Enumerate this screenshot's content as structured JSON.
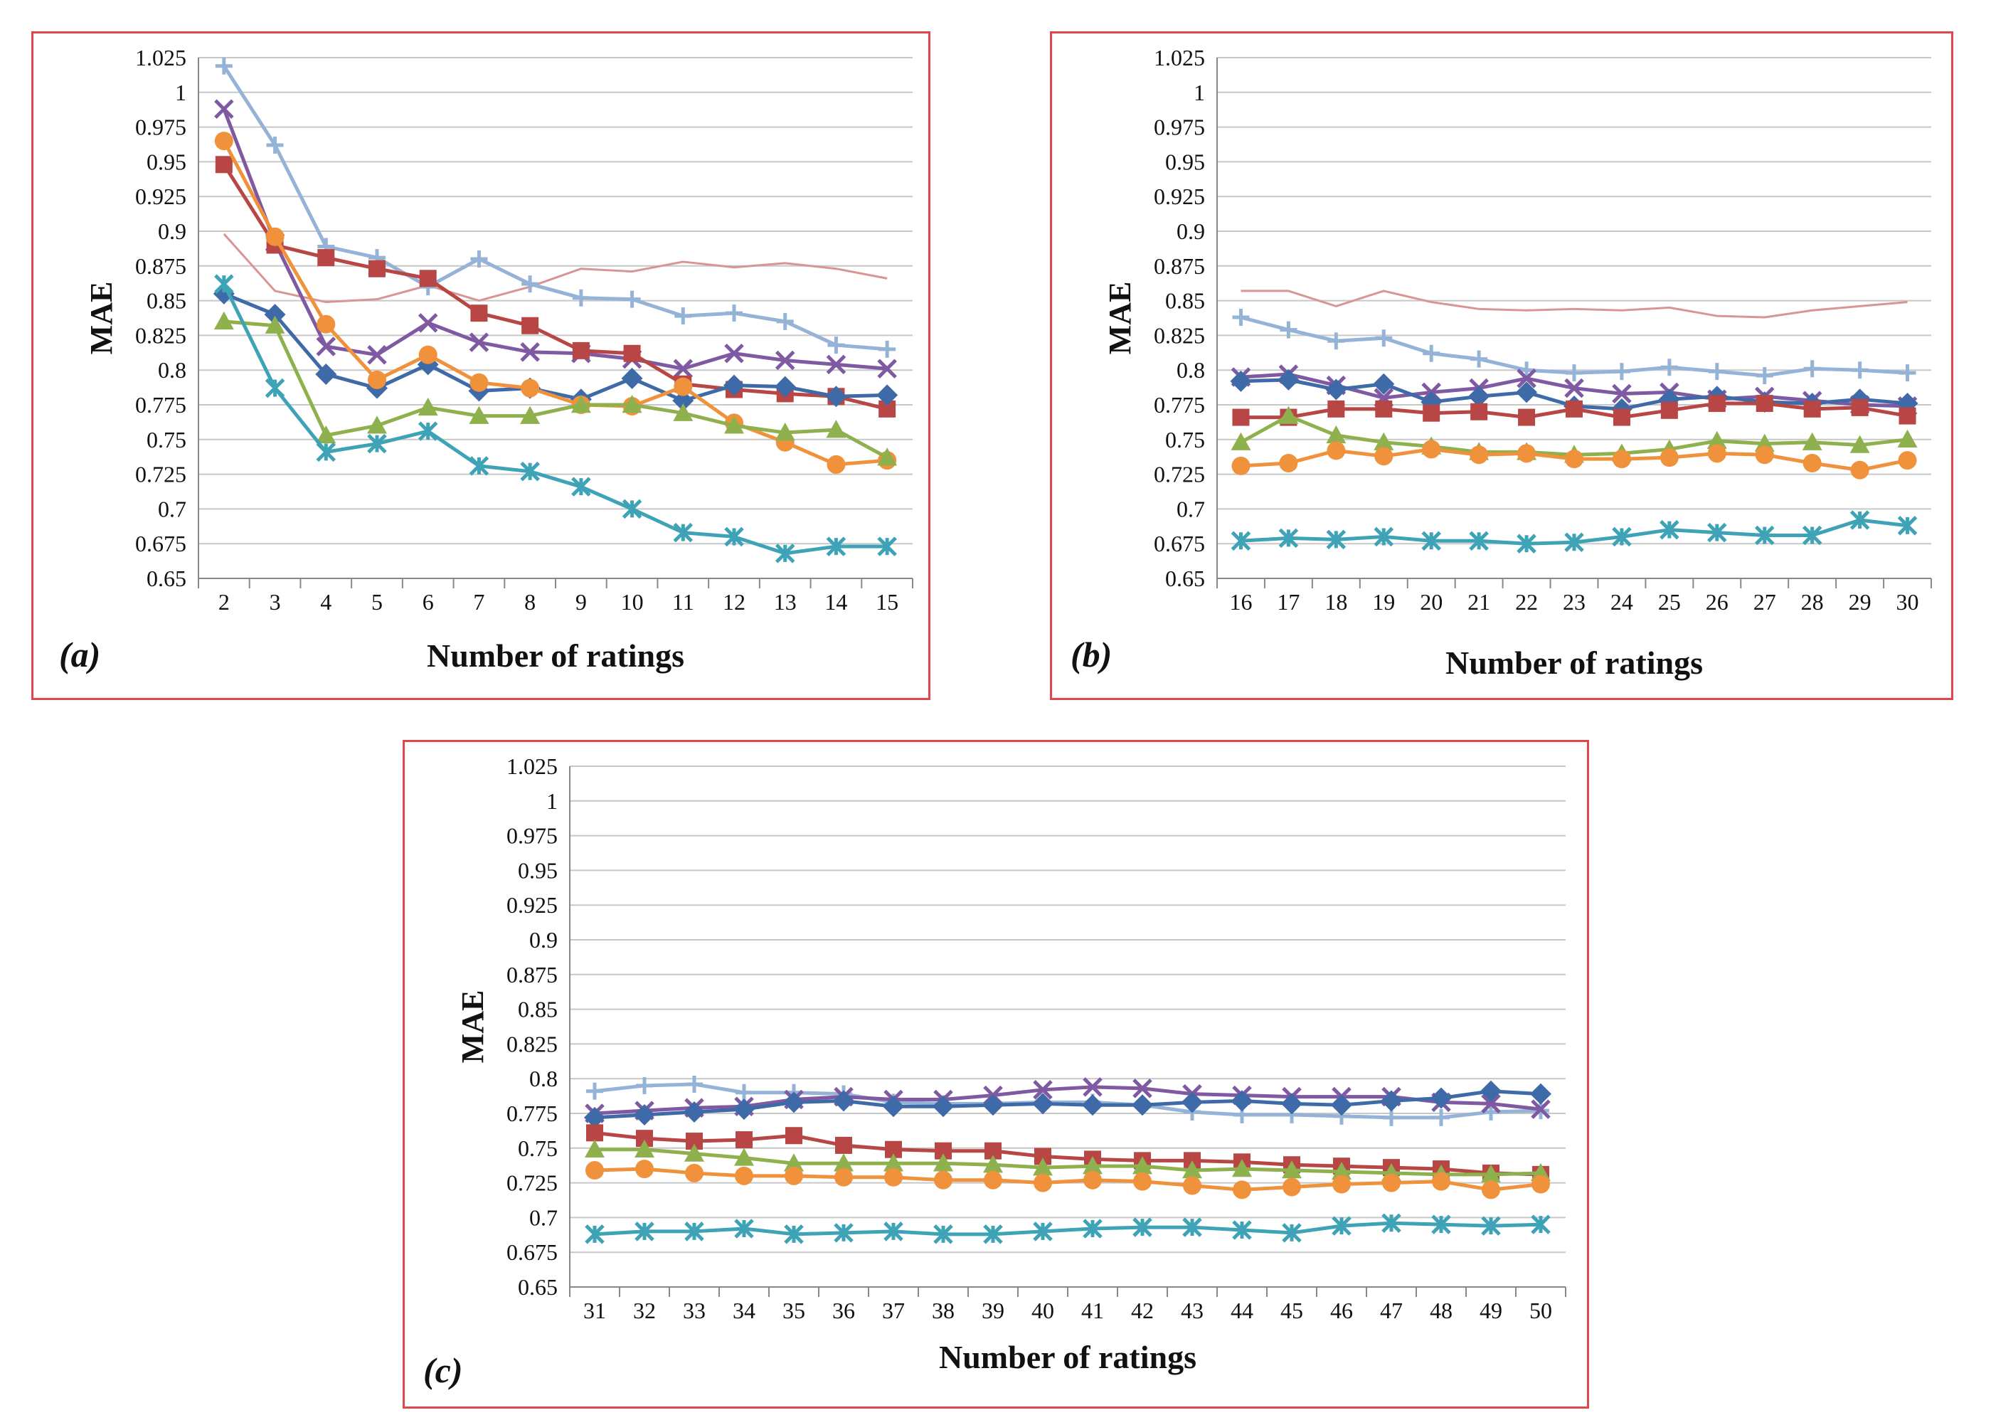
{
  "colors": {
    "frame": "#e0474c",
    "grid": "#c8c8c8",
    "axis": "#888888"
  },
  "chart_data": [
    {
      "panel_label": "(a)",
      "type": "line",
      "title": "",
      "xlabel": "Number of ratings",
      "ylabel": "MAE",
      "x": [
        2,
        3,
        4,
        5,
        6,
        7,
        8,
        9,
        10,
        11,
        12,
        13,
        14,
        15
      ],
      "ylim": [
        0.65,
        1.025
      ],
      "yticks": [
        "0.65",
        "0.675",
        "0.7",
        "0.725",
        "0.75",
        "0.775",
        "0.8",
        "0.825",
        "0.85",
        "0.875",
        "0.9",
        "0.925",
        "0.95",
        "0.975",
        "1",
        "1.025"
      ],
      "series": [
        {
          "name": "pink-thin-line",
          "color": "#d99594",
          "marker": "none",
          "values": [
            0.898,
            0.857,
            0.849,
            0.851,
            0.861,
            0.85,
            0.86,
            0.873,
            0.871,
            0.878,
            0.874,
            0.877,
            0.873,
            0.866
          ]
        },
        {
          "name": "light-blue-plus",
          "color": "#95b3d7",
          "marker": "plus",
          "values": [
            1.019,
            0.962,
            0.889,
            0.881,
            0.86,
            0.88,
            0.862,
            0.852,
            0.851,
            0.839,
            0.841,
            0.835,
            0.818,
            0.815
          ]
        },
        {
          "name": "purple-x",
          "color": "#7f5aa2",
          "marker": "x",
          "values": [
            0.988,
            0.892,
            0.817,
            0.811,
            0.834,
            0.82,
            0.813,
            0.812,
            0.808,
            0.801,
            0.812,
            0.807,
            0.804,
            0.801
          ]
        },
        {
          "name": "dark-red-square",
          "color": "#b84644",
          "marker": "square",
          "values": [
            0.948,
            0.89,
            0.881,
            0.873,
            0.866,
            0.841,
            0.832,
            0.814,
            0.812,
            0.79,
            0.786,
            0.783,
            0.781,
            0.772
          ]
        },
        {
          "name": "blue-diamond",
          "color": "#3f6aa8",
          "marker": "diamond",
          "values": [
            0.855,
            0.84,
            0.797,
            0.787,
            0.804,
            0.785,
            0.787,
            0.779,
            0.794,
            0.778,
            0.789,
            0.788,
            0.781,
            0.782
          ]
        },
        {
          "name": "orange-circle",
          "color": "#f0913c",
          "marker": "circle",
          "values": [
            0.965,
            0.896,
            0.833,
            0.793,
            0.811,
            0.791,
            0.787,
            0.775,
            0.774,
            0.788,
            0.762,
            0.748,
            0.732,
            0.735
          ]
        },
        {
          "name": "green-triangle",
          "color": "#8eb04d",
          "marker": "triangle",
          "values": [
            0.835,
            0.832,
            0.753,
            0.76,
            0.773,
            0.767,
            0.767,
            0.775,
            0.775,
            0.769,
            0.76,
            0.755,
            0.757,
            0.737
          ]
        },
        {
          "name": "teal-star",
          "color": "#3ea3b6",
          "marker": "star",
          "values": [
            0.862,
            0.787,
            0.741,
            0.747,
            0.756,
            0.731,
            0.727,
            0.716,
            0.7,
            0.683,
            0.68,
            0.668,
            0.673,
            0.673
          ]
        }
      ]
    },
    {
      "panel_label": "(b)",
      "type": "line",
      "title": "",
      "xlabel": "Number of ratings",
      "ylabel": "MAE",
      "x": [
        16,
        17,
        18,
        19,
        20,
        21,
        22,
        23,
        24,
        25,
        26,
        27,
        28,
        29,
        30
      ],
      "ylim": [
        0.65,
        1.025
      ],
      "yticks": [
        "0.65",
        "0.675",
        "0.7",
        "0.725",
        "0.75",
        "0.775",
        "0.8",
        "0.825",
        "0.85",
        "0.875",
        "0.9",
        "0.925",
        "0.95",
        "0.975",
        "1",
        "1.025"
      ],
      "series": [
        {
          "name": "pink-thin-line",
          "color": "#d99594",
          "marker": "none",
          "values": [
            0.857,
            0.857,
            0.846,
            0.857,
            0.849,
            0.844,
            0.843,
            0.844,
            0.843,
            0.845,
            0.839,
            0.838,
            0.843,
            0.846,
            0.849
          ]
        },
        {
          "name": "light-blue-plus",
          "color": "#95b3d7",
          "marker": "plus",
          "values": [
            0.838,
            0.829,
            0.821,
            0.823,
            0.812,
            0.808,
            0.8,
            0.798,
            0.799,
            0.802,
            0.799,
            0.796,
            0.801,
            0.8,
            0.798
          ]
        },
        {
          "name": "purple-x",
          "color": "#7f5aa2",
          "marker": "x",
          "values": [
            0.795,
            0.797,
            0.789,
            0.78,
            0.784,
            0.787,
            0.794,
            0.787,
            0.783,
            0.784,
            0.779,
            0.781,
            0.778,
            0.775,
            0.774
          ]
        },
        {
          "name": "blue-diamond",
          "color": "#3f6aa8",
          "marker": "diamond",
          "values": [
            0.792,
            0.793,
            0.786,
            0.79,
            0.777,
            0.781,
            0.784,
            0.774,
            0.772,
            0.779,
            0.781,
            0.777,
            0.776,
            0.779,
            0.776
          ]
        },
        {
          "name": "dark-red-square",
          "color": "#b84644",
          "marker": "square",
          "values": [
            0.766,
            0.766,
            0.772,
            0.772,
            0.769,
            0.77,
            0.766,
            0.772,
            0.766,
            0.771,
            0.776,
            0.776,
            0.772,
            0.773,
            0.767
          ]
        },
        {
          "name": "green-triangle",
          "color": "#8eb04d",
          "marker": "triangle",
          "values": [
            0.748,
            0.767,
            0.753,
            0.748,
            0.745,
            0.741,
            0.741,
            0.739,
            0.74,
            0.743,
            0.749,
            0.747,
            0.748,
            0.746,
            0.75
          ]
        },
        {
          "name": "orange-circle",
          "color": "#f0913c",
          "marker": "circle",
          "values": [
            0.731,
            0.733,
            0.742,
            0.738,
            0.743,
            0.739,
            0.74,
            0.736,
            0.736,
            0.737,
            0.74,
            0.739,
            0.733,
            0.728,
            0.735
          ]
        },
        {
          "name": "teal-star",
          "color": "#3ea3b6",
          "marker": "star",
          "values": [
            0.677,
            0.679,
            0.678,
            0.68,
            0.677,
            0.677,
            0.675,
            0.676,
            0.68,
            0.685,
            0.683,
            0.681,
            0.681,
            0.692,
            0.688
          ]
        }
      ]
    },
    {
      "panel_label": "(c)",
      "type": "line",
      "title": "",
      "xlabel": "Number of ratings",
      "ylabel": "MAE",
      "x": [
        31,
        32,
        33,
        34,
        35,
        36,
        37,
        38,
        39,
        40,
        41,
        42,
        43,
        44,
        45,
        46,
        47,
        48,
        49,
        50
      ],
      "ylim": [
        0.65,
        1.025
      ],
      "yticks": [
        "0.65",
        "0.675",
        "0.7",
        "0.725",
        "0.75",
        "0.775",
        "0.8",
        "0.825",
        "0.85",
        "0.875",
        "0.9",
        "0.925",
        "0.95",
        "0.975",
        "1",
        "1.025"
      ],
      "series": [
        {
          "name": "light-blue-plus",
          "color": "#95b3d7",
          "marker": "plus",
          "values": [
            0.791,
            0.795,
            0.796,
            0.79,
            0.79,
            0.789,
            0.783,
            0.782,
            0.782,
            0.783,
            0.783,
            0.781,
            0.776,
            0.774,
            0.774,
            0.773,
            0.772,
            0.772,
            0.776,
            0.777
          ]
        },
        {
          "name": "purple-x",
          "color": "#7f5aa2",
          "marker": "x",
          "values": [
            0.775,
            0.777,
            0.779,
            0.78,
            0.785,
            0.787,
            0.785,
            0.785,
            0.788,
            0.792,
            0.794,
            0.793,
            0.789,
            0.788,
            0.787,
            0.787,
            0.787,
            0.783,
            0.782,
            0.778
          ]
        },
        {
          "name": "blue-diamond",
          "color": "#3f6aa8",
          "marker": "diamond",
          "values": [
            0.772,
            0.774,
            0.776,
            0.778,
            0.783,
            0.784,
            0.78,
            0.78,
            0.781,
            0.782,
            0.781,
            0.781,
            0.783,
            0.784,
            0.782,
            0.781,
            0.784,
            0.786,
            0.791,
            0.789
          ]
        },
        {
          "name": "dark-red-square",
          "color": "#b84644",
          "marker": "square",
          "values": [
            0.761,
            0.757,
            0.755,
            0.756,
            0.759,
            0.752,
            0.749,
            0.748,
            0.748,
            0.744,
            0.742,
            0.741,
            0.741,
            0.74,
            0.738,
            0.737,
            0.736,
            0.735,
            0.732,
            0.731
          ]
        },
        {
          "name": "green-triangle",
          "color": "#8eb04d",
          "marker": "triangle",
          "values": [
            0.749,
            0.749,
            0.746,
            0.743,
            0.739,
            0.739,
            0.739,
            0.739,
            0.738,
            0.736,
            0.737,
            0.737,
            0.734,
            0.735,
            0.734,
            0.733,
            0.732,
            0.731,
            0.731,
            0.732
          ]
        },
        {
          "name": "orange-circle",
          "color": "#f0913c",
          "marker": "circle",
          "values": [
            0.734,
            0.735,
            0.732,
            0.73,
            0.73,
            0.729,
            0.729,
            0.727,
            0.727,
            0.725,
            0.727,
            0.726,
            0.723,
            0.72,
            0.722,
            0.724,
            0.725,
            0.726,
            0.72,
            0.724
          ]
        },
        {
          "name": "teal-star",
          "color": "#3ea3b6",
          "marker": "star",
          "values": [
            0.688,
            0.69,
            0.69,
            0.692,
            0.688,
            0.689,
            0.69,
            0.688,
            0.688,
            0.69,
            0.692,
            0.693,
            0.693,
            0.691,
            0.689,
            0.694,
            0.696,
            0.695,
            0.694,
            0.695
          ]
        }
      ]
    }
  ]
}
